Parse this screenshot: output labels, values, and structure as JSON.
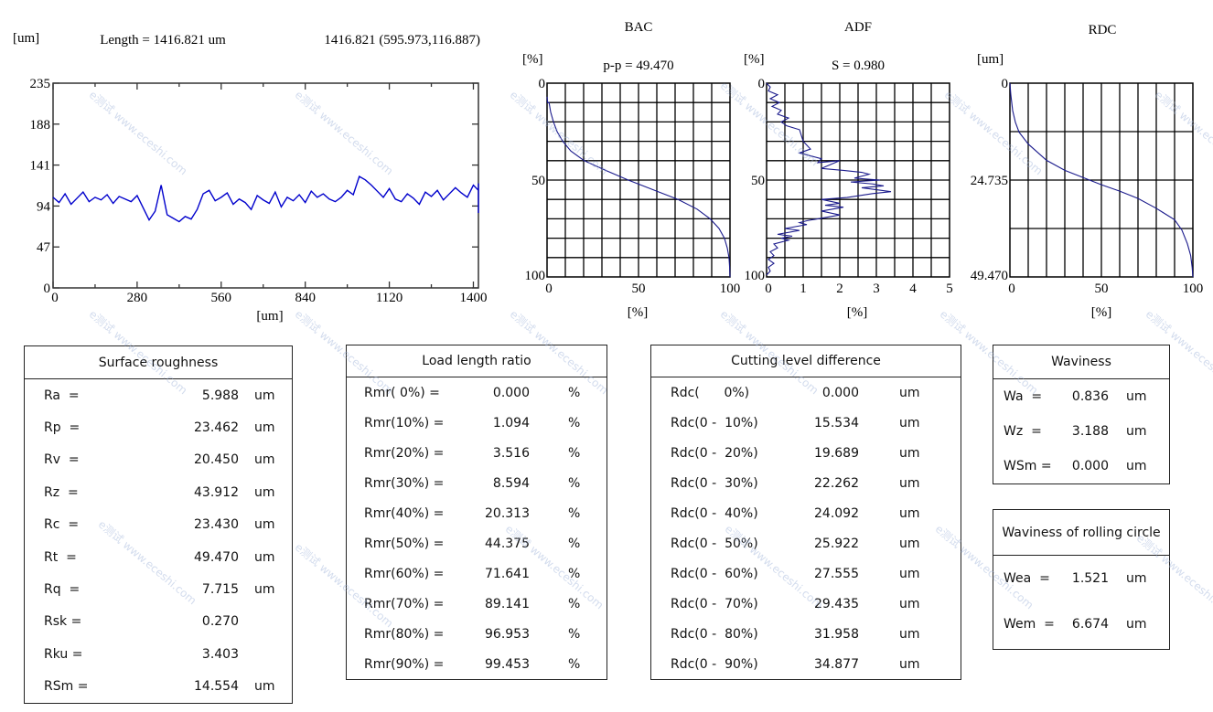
{
  "watermark": "e测试 www.eceshi.com",
  "chart_data": [
    {
      "id": "profile",
      "type": "line",
      "title": "",
      "ylabel": "[um]",
      "xlabel": "[um]",
      "header_left": "Length = 1416.821 um",
      "header_right": "1416.821 (595.973,116.887)",
      "xlim": [
        0,
        1416.821
      ],
      "ylim": [
        0,
        235
      ],
      "xticks": [
        "0",
        "280",
        "560",
        "840",
        "1120",
        "1400"
      ],
      "yticks": [
        "0",
        "47",
        "94",
        "141",
        "188",
        "235"
      ],
      "color": "#0000cc",
      "x_step": 20,
      "values": [
        104,
        98,
        108,
        96,
        103,
        110,
        99,
        104,
        101,
        107,
        97,
        105,
        102,
        99,
        106,
        92,
        78,
        88,
        118,
        84,
        80,
        76,
        82,
        79,
        90,
        108,
        112,
        100,
        104,
        109,
        96,
        102,
        98,
        90,
        106,
        101,
        97,
        110,
        93,
        104,
        100,
        107,
        98,
        111,
        104,
        108,
        102,
        99,
        104,
        112,
        107,
        128,
        124,
        118,
        111,
        104,
        114,
        102,
        99,
        108,
        103,
        96,
        110,
        105,
        112,
        101,
        108,
        115,
        109,
        104,
        118,
        112,
        107,
        113,
        109,
        120,
        106,
        112,
        104,
        98,
        102,
        110,
        96,
        104,
        100,
        92,
        104,
        98,
        88,
        103,
        99,
        112,
        101,
        106,
        97,
        108,
        111,
        104,
        96,
        102,
        110,
        106,
        120,
        98,
        86,
        116
      ]
    },
    {
      "id": "bac",
      "type": "line",
      "title": "BAC",
      "subtitle": "p-p = 49.470",
      "ylabel": "[%]",
      "xlabel": "[%]",
      "xlim": [
        0,
        100
      ],
      "ylim": [
        0,
        100
      ],
      "y_inverted": true,
      "grid": true,
      "xticks": [
        "0",
        "50",
        "100"
      ],
      "yticks": [
        "0",
        "50",
        "100"
      ],
      "color": "#1a1a8c",
      "points": [
        [
          0,
          7
        ],
        [
          0.3,
          10
        ],
        [
          1.094,
          10
        ],
        [
          2,
          15
        ],
        [
          3.516,
          20
        ],
        [
          5.5,
          25
        ],
        [
          8.594,
          30
        ],
        [
          13,
          35
        ],
        [
          20.313,
          40
        ],
        [
          32,
          45
        ],
        [
          44.375,
          50
        ],
        [
          58,
          55
        ],
        [
          71.641,
          60
        ],
        [
          82,
          65
        ],
        [
          89.141,
          70
        ],
        [
          94,
          75
        ],
        [
          96.953,
          80
        ],
        [
          98.5,
          85
        ],
        [
          99.453,
          90
        ],
        [
          99.8,
          95
        ],
        [
          100,
          100
        ]
      ]
    },
    {
      "id": "adf",
      "type": "line",
      "title": "ADF",
      "subtitle": "S = 0.980",
      "ylabel": "[%]",
      "xlabel": "[%]",
      "xlim": [
        0,
        5
      ],
      "ylim": [
        0,
        100
      ],
      "y_inverted": true,
      "grid": true,
      "xticks": [
        "0",
        "1",
        "2",
        "3",
        "4",
        "5"
      ],
      "yticks": [
        "0",
        "50",
        "100"
      ],
      "color": "#1a1a8c",
      "points": [
        [
          0,
          0
        ],
        [
          0.1,
          2
        ],
        [
          0.05,
          4
        ],
        [
          0.3,
          6
        ],
        [
          0.1,
          8
        ],
        [
          0.35,
          10
        ],
        [
          0.15,
          12
        ],
        [
          0.4,
          14
        ],
        [
          0.3,
          16
        ],
        [
          0.6,
          18
        ],
        [
          0.4,
          20
        ],
        [
          0.55,
          22
        ],
        [
          0.9,
          24
        ],
        [
          1.0,
          30
        ],
        [
          1.2,
          34
        ],
        [
          0.9,
          36
        ],
        [
          1.5,
          39
        ],
        [
          1.4,
          41
        ],
        [
          2.0,
          40
        ],
        [
          1.5,
          44
        ],
        [
          2.1,
          45
        ],
        [
          2.6,
          46
        ],
        [
          2.8,
          47
        ],
        [
          2.4,
          49
        ],
        [
          3.1,
          50
        ],
        [
          2.3,
          51
        ],
        [
          2.9,
          52
        ],
        [
          3.2,
          53
        ],
        [
          2.6,
          54
        ],
        [
          3.4,
          56
        ],
        [
          2.9,
          57
        ],
        [
          2.2,
          59
        ],
        [
          1.5,
          60
        ],
        [
          2.0,
          62
        ],
        [
          1.6,
          63
        ],
        [
          2.1,
          64
        ],
        [
          1.5,
          66
        ],
        [
          2.0,
          68
        ],
        [
          1.4,
          70
        ],
        [
          1.1,
          71
        ],
        [
          0.9,
          72
        ],
        [
          1.1,
          73
        ],
        [
          0.5,
          75
        ],
        [
          0.9,
          76
        ],
        [
          0.3,
          78
        ],
        [
          0.7,
          79
        ],
        [
          0.4,
          80
        ],
        [
          0.6,
          81
        ],
        [
          0.2,
          83
        ],
        [
          0.3,
          85
        ],
        [
          0.1,
          87
        ],
        [
          0.2,
          89
        ],
        [
          0.05,
          91
        ],
        [
          0.2,
          93
        ],
        [
          0.05,
          95
        ],
        [
          0.1,
          97
        ],
        [
          0,
          99
        ]
      ]
    },
    {
      "id": "rdc",
      "type": "line",
      "title": "RDC",
      "ylabel": "[um]",
      "xlabel": "[%]",
      "xlim": [
        0,
        100
      ],
      "ylim": [
        0,
        49.47
      ],
      "y_inverted": true,
      "grid": true,
      "xticks": [
        "0",
        "50",
        "100"
      ],
      "yticks": [
        "0",
        "24.735",
        "49.470"
      ],
      "color": "#1a1a8c",
      "points": [
        [
          0,
          0
        ],
        [
          0.5,
          3
        ],
        [
          1.5,
          7
        ],
        [
          3,
          10
        ],
        [
          5,
          12.5
        ],
        [
          10,
          15.534
        ],
        [
          20,
          19.689
        ],
        [
          30,
          22.262
        ],
        [
          40,
          24.092
        ],
        [
          50,
          25.922
        ],
        [
          60,
          27.555
        ],
        [
          70,
          29.435
        ],
        [
          80,
          31.958
        ],
        [
          90,
          34.877
        ],
        [
          94,
          37.5
        ],
        [
          97,
          41
        ],
        [
          98.8,
          44
        ],
        [
          99.6,
          47
        ],
        [
          100,
          49.47
        ]
      ]
    }
  ],
  "tables": {
    "surface_roughness": {
      "title": "Surface roughness",
      "rows": [
        {
          "label": "Ra  =",
          "value": "5.988",
          "unit": "um"
        },
        {
          "label": "Rp  =",
          "value": "23.462",
          "unit": "um"
        },
        {
          "label": "Rv  =",
          "value": "20.450",
          "unit": "um"
        },
        {
          "label": "Rz  =",
          "value": "43.912",
          "unit": "um"
        },
        {
          "label": "Rc  =",
          "value": "23.430",
          "unit": "um"
        },
        {
          "label": "Rt  =",
          "value": "49.470",
          "unit": "um"
        },
        {
          "label": "Rq  =",
          "value": "7.715",
          "unit": "um"
        },
        {
          "label": "Rsk =",
          "value": "0.270",
          "unit": ""
        },
        {
          "label": "Rku =",
          "value": "3.403",
          "unit": ""
        },
        {
          "label": "RSm =",
          "value": "14.554",
          "unit": "um"
        }
      ]
    },
    "load_length_ratio": {
      "title": "Load length ratio",
      "rows": [
        {
          "label": "Rmr( 0%) =",
          "value": "0.000",
          "unit": "%"
        },
        {
          "label": "Rmr(10%) =",
          "value": "1.094",
          "unit": "%"
        },
        {
          "label": "Rmr(20%) =",
          "value": "3.516",
          "unit": "%"
        },
        {
          "label": "Rmr(30%) =",
          "value": "8.594",
          "unit": "%"
        },
        {
          "label": "Rmr(40%) =",
          "value": "20.313",
          "unit": "%"
        },
        {
          "label": "Rmr(50%) =",
          "value": "44.375",
          "unit": "%"
        },
        {
          "label": "Rmr(60%) =",
          "value": "71.641",
          "unit": "%"
        },
        {
          "label": "Rmr(70%) =",
          "value": "89.141",
          "unit": "%"
        },
        {
          "label": "Rmr(80%) =",
          "value": "96.953",
          "unit": "%"
        },
        {
          "label": "Rmr(90%) =",
          "value": "99.453",
          "unit": "%"
        }
      ]
    },
    "cutting_level_difference": {
      "title": "Cutting level difference",
      "rows": [
        {
          "label": "Rdc(      0%)",
          "value": "0.000",
          "unit": "um"
        },
        {
          "label": "Rdc(0 -  10%)",
          "value": "15.534",
          "unit": "um"
        },
        {
          "label": "Rdc(0 -  20%)",
          "value": "19.689",
          "unit": "um"
        },
        {
          "label": "Rdc(0 -  30%)",
          "value": "22.262",
          "unit": "um"
        },
        {
          "label": "Rdc(0 -  40%)",
          "value": "24.092",
          "unit": "um"
        },
        {
          "label": "Rdc(0 -  50%)",
          "value": "25.922",
          "unit": "um"
        },
        {
          "label": "Rdc(0 -  60%)",
          "value": "27.555",
          "unit": "um"
        },
        {
          "label": "Rdc(0 -  70%)",
          "value": "29.435",
          "unit": "um"
        },
        {
          "label": "Rdc(0 -  80%)",
          "value": "31.958",
          "unit": "um"
        },
        {
          "label": "Rdc(0 -  90%)",
          "value": "34.877",
          "unit": "um"
        }
      ]
    },
    "waviness": {
      "title": "Waviness",
      "rows": [
        {
          "label": "Wa  =",
          "value": "0.836",
          "unit": "um"
        },
        {
          "label": "Wz  =",
          "value": "3.188",
          "unit": "um"
        },
        {
          "label": "WSm =",
          "value": "0.000",
          "unit": "um"
        }
      ]
    },
    "waviness_rolling_circle": {
      "title": "Waviness of rolling circle",
      "rows": [
        {
          "label": "Wea  =",
          "value": "1.521",
          "unit": "um"
        },
        {
          "label": "Wem  =",
          "value": "6.674",
          "unit": "um"
        }
      ]
    }
  }
}
